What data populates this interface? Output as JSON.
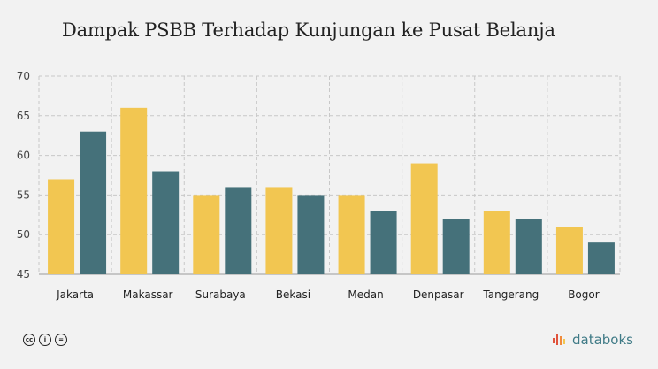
{
  "title": "Dampak PSBB Terhadap Kunjungan ke Pusat Belanja",
  "brand": "databoks",
  "colors": {
    "series_a": "#f2c651",
    "series_b": "#45717a",
    "grid": "#c8c8c8",
    "axis": "#999999"
  },
  "icons": [
    "cc-icon",
    "by-icon",
    "nd-icon"
  ],
  "chart_data": {
    "type": "bar",
    "title": "Dampak PSBB Terhadap Kunjungan ke Pusat Belanja",
    "xlabel": "",
    "ylabel": "",
    "categories": [
      "Jakarta",
      "Makassar",
      "Surabaya",
      "Bekasi",
      "Medan",
      "Denpasar",
      "Tangerang",
      "Bogor"
    ],
    "series": [
      {
        "values": [
          57,
          66,
          55,
          56,
          55,
          59,
          53,
          51
        ]
      },
      {
        "values": [
          63,
          58,
          56,
          55,
          53,
          52,
          52,
          49
        ]
      }
    ],
    "ylim": [
      45,
      70
    ],
    "yticks": [
      45,
      50,
      55,
      60,
      65,
      70
    ],
    "grid": true,
    "legend": "none"
  }
}
